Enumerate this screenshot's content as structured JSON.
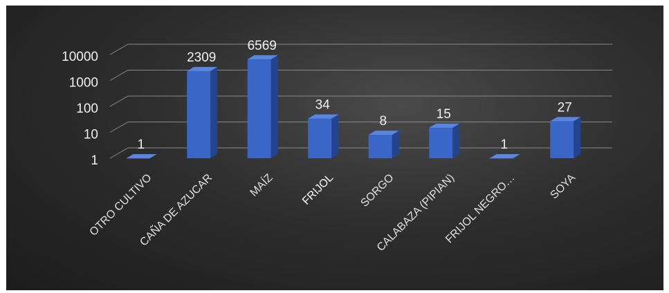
{
  "chart_data": {
    "type": "bar",
    "title": "",
    "xlabel": "",
    "ylabel": "",
    "y_scale": "log",
    "ylim": [
      1,
      10000
    ],
    "y_ticks": [
      "1",
      "10",
      "100",
      "1000",
      "10000"
    ],
    "grid": true,
    "legend": "none",
    "categories": [
      "OTRO CULTIVO",
      "CAÑA DE AZUCAR",
      "MAÍZ",
      "FRIJOL",
      "SORGO",
      "CALABAZA (PIPIAN)",
      "FRIJOL NEGRO…",
      "SOYA"
    ],
    "values": [
      1,
      2309,
      6569,
      34,
      8,
      15,
      1,
      27
    ],
    "value_labels": [
      "1",
      "2309",
      "6569",
      "34",
      "8",
      "15",
      "1",
      "27"
    ]
  },
  "colors": {
    "bar_front": "#3a66c8",
    "bar_side": "#23448f",
    "bar_top": "#5a86e0",
    "grid": "#8a8a8a",
    "text": "#f2f2f2"
  }
}
